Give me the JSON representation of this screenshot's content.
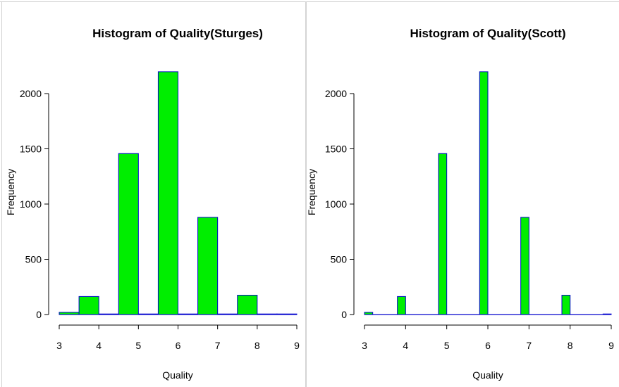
{
  "colors": {
    "bar_fill": "#00ee00",
    "bar_stroke": "#0000cc",
    "axis": "#000000",
    "frame": "#d0d0d0"
  },
  "chart_data": [
    {
      "type": "bar",
      "title": "Histogram of Quality(Sturges)",
      "xlabel": "Quality",
      "ylabel": "Frequency",
      "xlim": [
        3,
        9
      ],
      "ylim": [
        0,
        2200
      ],
      "xticks": [
        3,
        4,
        5,
        6,
        7,
        8,
        9
      ],
      "yticks": [
        0,
        500,
        1000,
        1500,
        2000
      ],
      "bins": [
        {
          "x0": 3.0,
          "x1": 3.5,
          "count": 20
        },
        {
          "x0": 3.5,
          "x1": 4.0,
          "count": 163
        },
        {
          "x0": 4.0,
          "x1": 4.5,
          "count": 0
        },
        {
          "x0": 4.5,
          "x1": 5.0,
          "count": 1457
        },
        {
          "x0": 5.0,
          "x1": 5.5,
          "count": 0
        },
        {
          "x0": 5.5,
          "x1": 6.0,
          "count": 2198
        },
        {
          "x0": 6.0,
          "x1": 6.5,
          "count": 0
        },
        {
          "x0": 6.5,
          "x1": 7.0,
          "count": 880
        },
        {
          "x0": 7.0,
          "x1": 7.5,
          "count": 0
        },
        {
          "x0": 7.5,
          "x1": 8.0,
          "count": 175
        },
        {
          "x0": 8.0,
          "x1": 8.5,
          "count": 0
        },
        {
          "x0": 8.5,
          "x1": 9.0,
          "count": 5
        }
      ]
    },
    {
      "type": "bar",
      "title": "Histogram of Quality(Scott)",
      "xlabel": "Quality",
      "ylabel": "Frequency",
      "xlim": [
        3,
        9
      ],
      "ylim": [
        0,
        2200
      ],
      "xticks": [
        3,
        4,
        5,
        6,
        7,
        8,
        9
      ],
      "yticks": [
        0,
        500,
        1000,
        1500,
        2000
      ],
      "bins": [
        {
          "x0": 3.0,
          "x1": 3.2,
          "count": 20
        },
        {
          "x0": 3.8,
          "x1": 4.0,
          "count": 163
        },
        {
          "x0": 4.8,
          "x1": 5.0,
          "count": 1457
        },
        {
          "x0": 5.8,
          "x1": 6.0,
          "count": 2198
        },
        {
          "x0": 6.8,
          "x1": 7.0,
          "count": 880
        },
        {
          "x0": 7.8,
          "x1": 8.0,
          "count": 175
        },
        {
          "x0": 8.8,
          "x1": 9.0,
          "count": 5
        }
      ]
    }
  ]
}
